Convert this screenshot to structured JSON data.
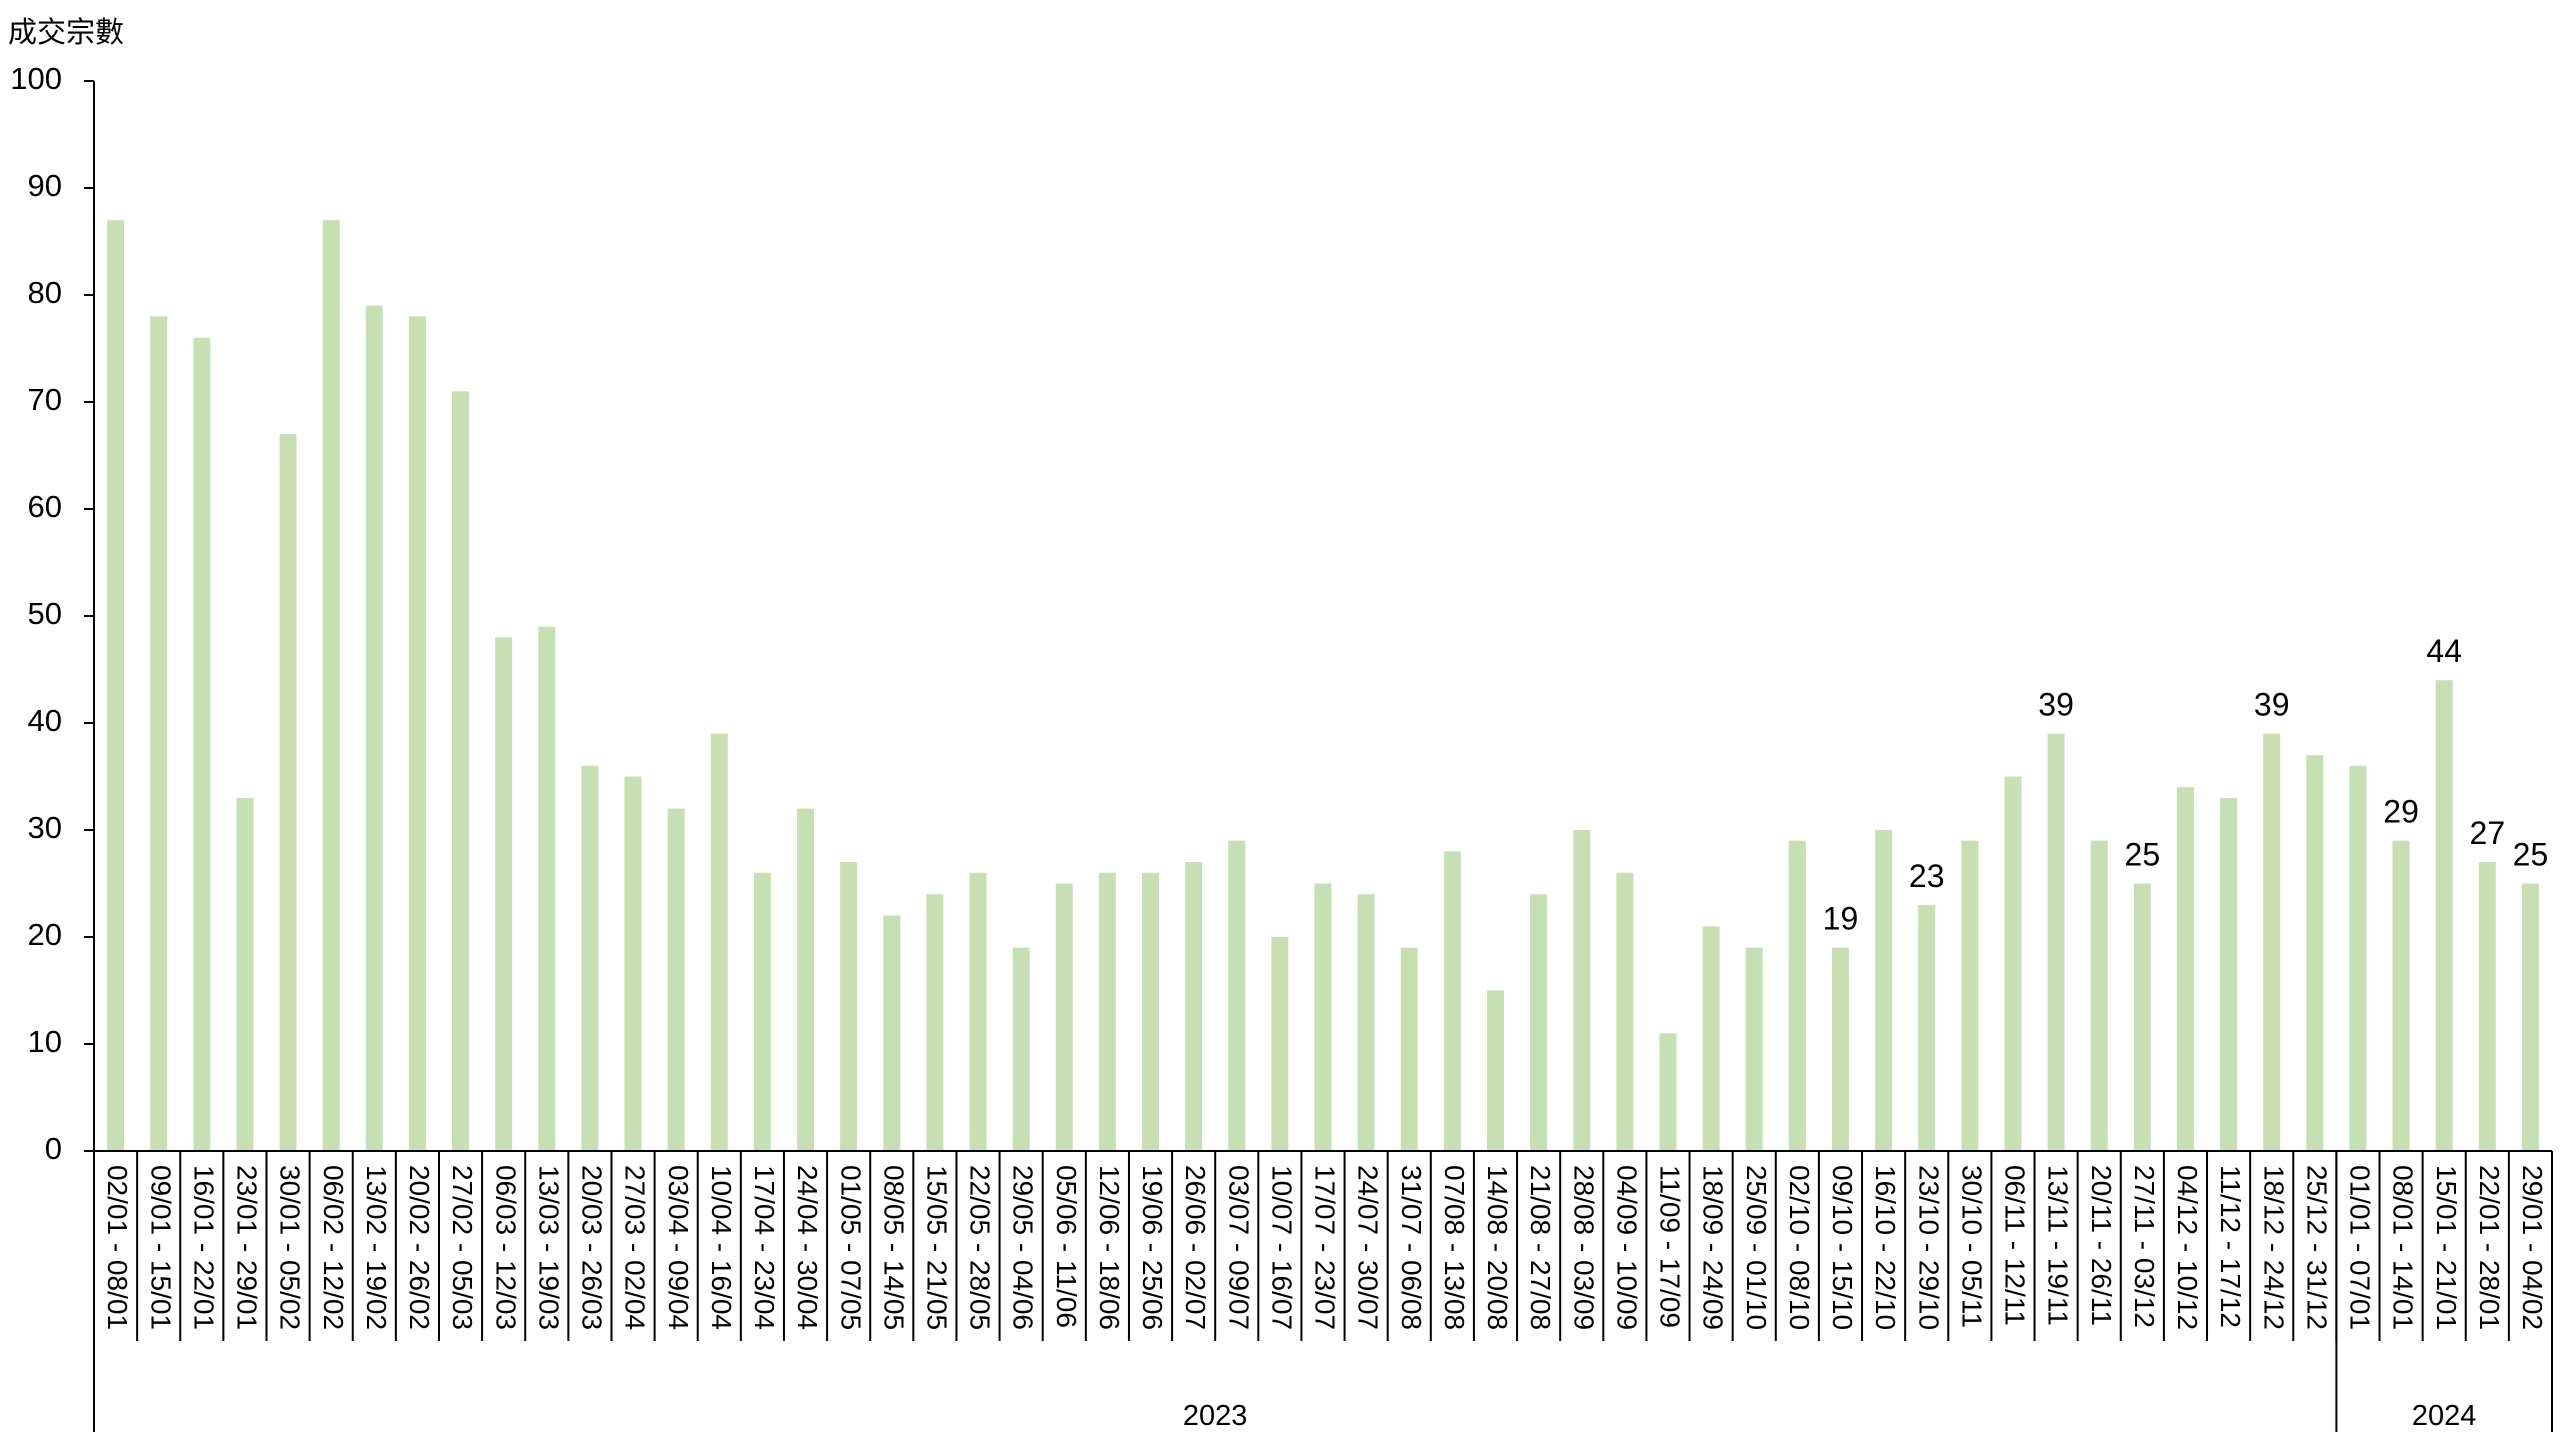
{
  "chart_data": {
    "type": "bar",
    "ylabel": "成交宗數",
    "ylim": [
      0,
      100
    ],
    "y_ticks": [
      "0",
      "10",
      "20",
      "30",
      "40",
      "50",
      "60",
      "70",
      "80",
      "90",
      "100"
    ],
    "bar_color": "#c6e0b4",
    "categories": [
      "02/01 - 08/01",
      "09/01 - 15/01",
      "16/01 - 22/01",
      "23/01 - 29/01",
      "30/01 - 05/02",
      "06/02 - 12/02",
      "13/02 - 19/02",
      "20/02 - 26/02",
      "27/02 - 05/03",
      "06/03 - 12/03",
      "13/03 - 19/03",
      "20/03 - 26/03",
      "27/03 - 02/04",
      "03/04 - 09/04",
      "10/04 - 16/04",
      "17/04 - 23/04",
      "24/04 - 30/04",
      "01/05 - 07/05",
      "08/05 - 14/05",
      "15/05 - 21/05",
      "22/05 - 28/05",
      "29/05 - 04/06",
      "05/06 - 11/06",
      "12/06 - 18/06",
      "19/06 - 25/06",
      "26/06 - 02/07",
      "03/07 - 09/07",
      "10/07 - 16/07",
      "17/07 - 23/07",
      "24/07 - 30/07",
      "31/07 - 06/08",
      "07/08 - 13/08",
      "14/08 - 20/08",
      "21/08 - 27/08",
      "28/08 - 03/09",
      "04/09 - 10/09",
      "11/09 - 17/09",
      "18/09 - 24/09",
      "25/09 - 01/10",
      "02/10 - 08/10",
      "09/10 - 15/10",
      "16/10 - 22/10",
      "23/10 - 29/10",
      "30/10 - 05/11",
      "06/11 - 12/11",
      "13/11 - 19/11",
      "20/11 - 26/11",
      "27/11 - 03/12",
      "04/12 - 10/12",
      "11/12 - 17/12",
      "18/12 - 24/12",
      "25/12 - 31/12",
      "01/01 - 07/01",
      "08/01 - 14/01",
      "15/01 - 21/01",
      "22/01 - 28/01",
      "29/01 - 04/02"
    ],
    "values": [
      87,
      78,
      76,
      33,
      67,
      87,
      79,
      78,
      71,
      48,
      49,
      36,
      35,
      32,
      39,
      26,
      32,
      27,
      22,
      24,
      26,
      19,
      25,
      26,
      26,
      27,
      29,
      20,
      25,
      24,
      19,
      28,
      15,
      24,
      30,
      26,
      11,
      21,
      19,
      29,
      19,
      30,
      23,
      29,
      35,
      39,
      29,
      25,
      34,
      33,
      39,
      37,
      36,
      29,
      44,
      27,
      25
    ],
    "data_labels": [
      {
        "index": 40,
        "text": "19"
      },
      {
        "index": 42,
        "text": "23"
      },
      {
        "index": 45,
        "text": "39"
      },
      {
        "index": 47,
        "text": "25"
      },
      {
        "index": 50,
        "text": "39"
      },
      {
        "index": 53,
        "text": "29"
      },
      {
        "index": 54,
        "text": "44"
      },
      {
        "index": 55,
        "text": "27"
      },
      {
        "index": 56,
        "text": "25"
      }
    ],
    "groups": [
      {
        "label": "2023",
        "start": 0,
        "end": 51
      },
      {
        "label": "2024",
        "start": 52,
        "end": 56
      }
    ]
  }
}
